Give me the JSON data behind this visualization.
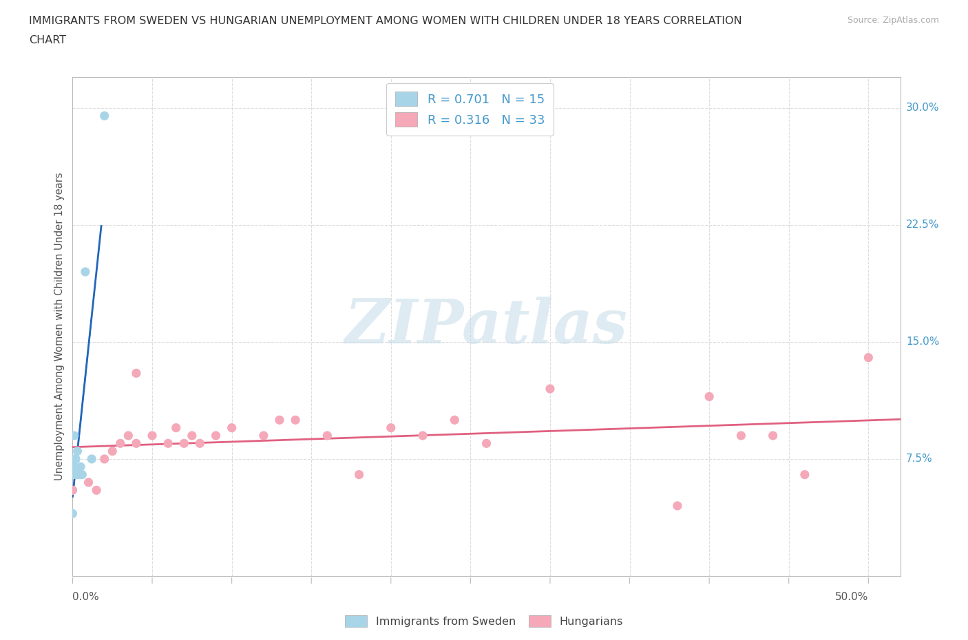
{
  "title_line1": "IMMIGRANTS FROM SWEDEN VS HUNGARIAN UNEMPLOYMENT AMONG WOMEN WITH CHILDREN UNDER 18 YEARS CORRELATION",
  "title_line2": "CHART",
  "source": "Source: ZipAtlas.com",
  "ylabel": "Unemployment Among Women with Children Under 18 years",
  "ytick_vals": [
    0.075,
    0.15,
    0.225,
    0.3
  ],
  "ytick_labels": [
    "7.5%",
    "15.0%",
    "22.5%",
    "30.0%"
  ],
  "xtick_label_left": "0.0%",
  "xtick_label_right": "50.0%",
  "xlim": [
    0.0,
    0.52
  ],
  "ylim": [
    0.0,
    0.32
  ],
  "legend_text1": "R = 0.701   N = 15",
  "legend_text2": "R = 0.316   N = 33",
  "color_sweden": "#A8D4E8",
  "color_hungarian": "#F4A8B8",
  "trendline_color_sweden": "#2266BB",
  "trendline_color_hungarian": "#E06080",
  "tick_label_color": "#4499CC",
  "watermark_text": "ZIPatlas",
  "watermark_color": "#C5DCE8",
  "sweden_x": [
    0.0,
    0.0,
    0.0,
    0.0,
    0.001,
    0.001,
    0.002,
    0.002,
    0.003,
    0.004,
    0.005,
    0.006,
    0.008,
    0.012,
    0.02
  ],
  "sweden_y": [
    0.04,
    0.055,
    0.065,
    0.075,
    0.07,
    0.09,
    0.065,
    0.075,
    0.08,
    0.065,
    0.07,
    0.065,
    0.195,
    0.075,
    0.295
  ],
  "hungarian_x": [
    0.0,
    0.01,
    0.015,
    0.02,
    0.025,
    0.03,
    0.035,
    0.04,
    0.04,
    0.05,
    0.06,
    0.065,
    0.07,
    0.075,
    0.08,
    0.09,
    0.1,
    0.12,
    0.13,
    0.14,
    0.16,
    0.18,
    0.2,
    0.22,
    0.24,
    0.26,
    0.3,
    0.38,
    0.4,
    0.42,
    0.44,
    0.46,
    0.5
  ],
  "hungarian_y": [
    0.055,
    0.06,
    0.055,
    0.075,
    0.08,
    0.085,
    0.09,
    0.085,
    0.13,
    0.09,
    0.085,
    0.095,
    0.085,
    0.09,
    0.085,
    0.09,
    0.095,
    0.09,
    0.1,
    0.1,
    0.09,
    0.065,
    0.095,
    0.09,
    0.1,
    0.085,
    0.12,
    0.045,
    0.115,
    0.09,
    0.09,
    0.065,
    0.14
  ],
  "grid_color": "#DDDDDD",
  "spine_color": "#BBBBBB"
}
